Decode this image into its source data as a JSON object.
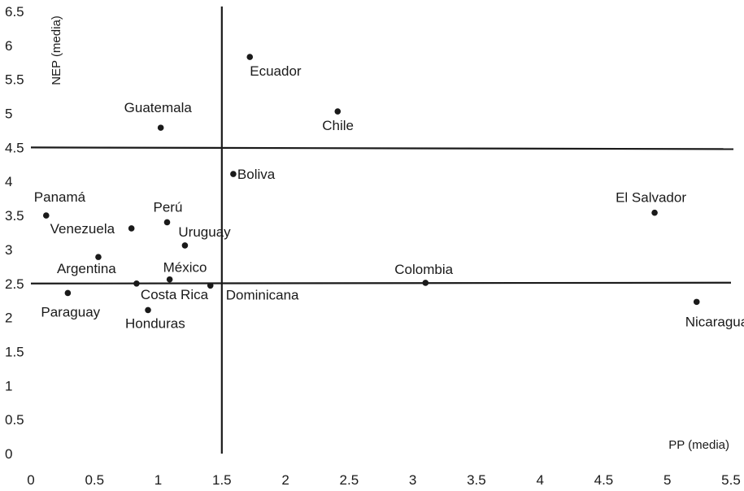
{
  "chart_data": {
    "type": "scatter",
    "xlabel": "PP (media)",
    "ylabel": "NEP (media)",
    "xlim": [
      0,
      5.5
    ],
    "ylim": [
      0,
      6.5
    ],
    "x_ticks": [
      "0",
      "0.5",
      "1",
      "1.5",
      "2",
      "2.5",
      "3",
      "3.5",
      "4",
      "4.5",
      "5",
      "5.5"
    ],
    "y_ticks": [
      "0",
      "0.5",
      "1",
      "1.5",
      "2",
      "2.5",
      "3",
      "3.5",
      "4",
      "4.5",
      "5",
      "5.5",
      "6",
      "6.5"
    ],
    "grid": false,
    "reference_lines": {
      "x": 1.5,
      "y": [
        4.5,
        2.5
      ]
    },
    "points": [
      {
        "label": "Ecuador",
        "x": 1.72,
        "y": 5.83
      },
      {
        "label": "Chile",
        "x": 2.41,
        "y": 5.03
      },
      {
        "label": "Guatemala",
        "x": 1.02,
        "y": 4.79
      },
      {
        "label": "Boliva",
        "x": 1.59,
        "y": 4.11
      },
      {
        "label": "Panamá",
        "x": 0.12,
        "y": 3.5
      },
      {
        "label": "Venezuela",
        "x": 0.79,
        "y": 3.31
      },
      {
        "label": "Perú",
        "x": 1.07,
        "y": 3.4
      },
      {
        "label": "Uruguay",
        "x": 1.21,
        "y": 3.06
      },
      {
        "label": "Argentina",
        "x": 0.53,
        "y": 2.89
      },
      {
        "label": "México",
        "x": 1.09,
        "y": 2.56
      },
      {
        "label": "Costa Rica",
        "x": 0.83,
        "y": 2.5
      },
      {
        "label": "Dominicana",
        "x": 1.41,
        "y": 2.47
      },
      {
        "label": "Paraguay",
        "x": 0.29,
        "y": 2.36
      },
      {
        "label": "Honduras",
        "x": 0.92,
        "y": 2.11
      },
      {
        "label": "Colombia",
        "x": 3.1,
        "y": 2.51
      },
      {
        "label": "El Salvador",
        "x": 4.9,
        "y": 3.54
      },
      {
        "label": "Nicaragua",
        "x": 5.23,
        "y": 2.23
      }
    ]
  }
}
